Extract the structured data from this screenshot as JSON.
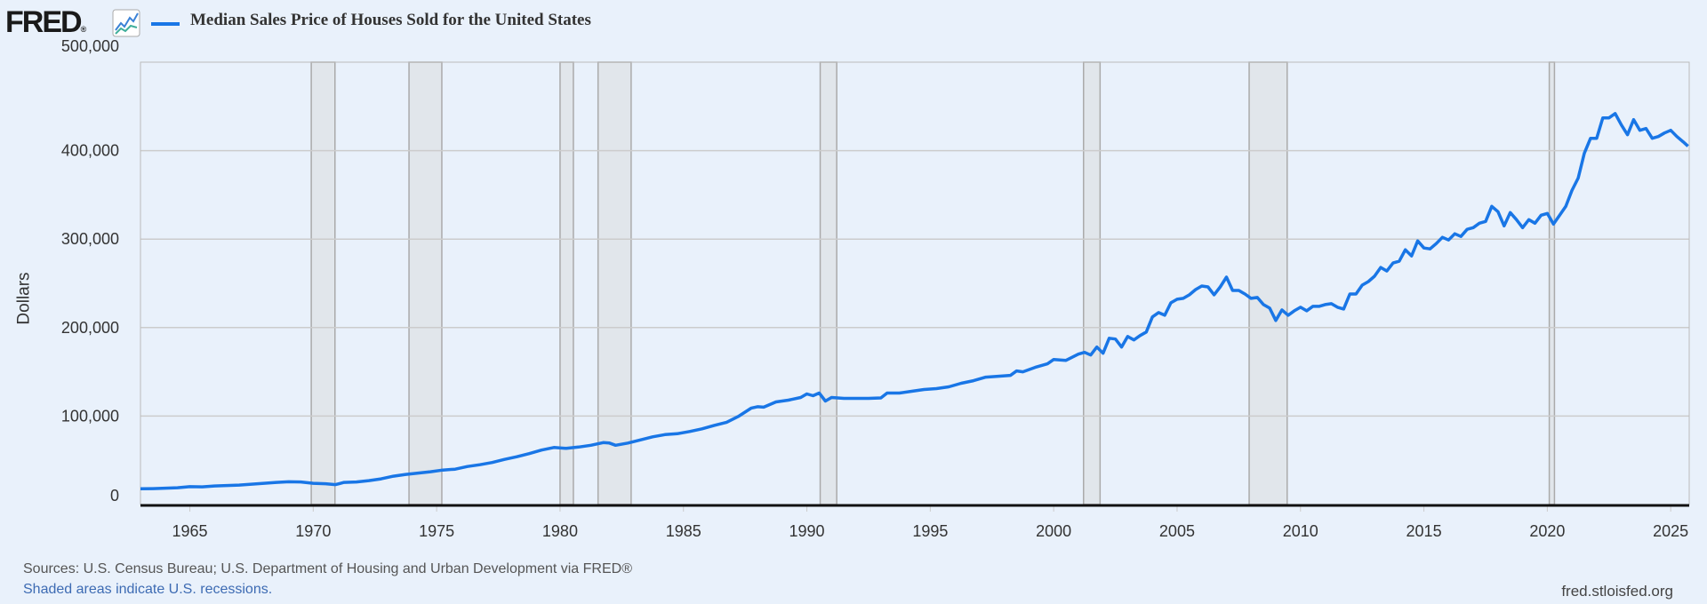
{
  "header": {
    "logo": "FRED",
    "logo_mark": "®",
    "series_title": "Median Sales Price of Houses Sold for the United States"
  },
  "footer": {
    "sources": "Sources: U.S. Census Bureau; U.S. Department of Housing and Urban Development via FRED®",
    "shaded_note": "Shaded areas indicate U.S. recessions.",
    "site": "fred.stloisfed.org"
  },
  "colors": {
    "line": "#1976e6",
    "recession": "#e1e6eb",
    "background": "#e9f1fb"
  },
  "chart_data": {
    "type": "line",
    "title": "Median Sales Price of Houses Sold for the United States",
    "ylabel": "Dollars",
    "xlabel": "",
    "xlim": [
      1963.0,
      2025.75
    ],
    "ylim": [
      0,
      500000
    ],
    "yticks": [
      0,
      100000,
      200000,
      300000,
      400000,
      500000
    ],
    "ytick_labels": [
      "0",
      "100,000",
      "200,000",
      "300,000",
      "400,000",
      "500,000"
    ],
    "xticks": [
      1965,
      1970,
      1975,
      1980,
      1985,
      1990,
      1995,
      2000,
      2005,
      2010,
      2015,
      2020,
      2025
    ],
    "grid": true,
    "recessions": [
      [
        1969.92,
        1970.88
      ],
      [
        1973.88,
        1975.21
      ],
      [
        1980.0,
        1980.54
      ],
      [
        1981.54,
        1982.88
      ],
      [
        1990.54,
        1991.21
      ],
      [
        2001.21,
        2001.88
      ],
      [
        2007.92,
        2009.46
      ],
      [
        2020.08,
        2020.29
      ]
    ],
    "series": [
      {
        "name": "Median Sales Price of Houses Sold for the United States",
        "units": "thousand dollars",
        "x": [
          1963.0,
          1963.5,
          1964.0,
          1964.5,
          1965.0,
          1965.5,
          1966.0,
          1966.5,
          1967.0,
          1967.5,
          1968.0,
          1968.5,
          1969.0,
          1969.5,
          1970.0,
          1970.5,
          1970.9,
          1971.25,
          1971.75,
          1972.25,
          1972.75,
          1973.25,
          1973.75,
          1974.25,
          1974.75,
          1975.25,
          1975.75,
          1976.25,
          1976.75,
          1977.25,
          1977.75,
          1978.25,
          1978.75,
          1979.25,
          1979.75,
          1980.25,
          1980.75,
          1981.25,
          1981.75,
          1982.0,
          1982.25,
          1982.75,
          1983.25,
          1983.75,
          1984.25,
          1984.75,
          1985.25,
          1985.75,
          1986.25,
          1986.75,
          1987.25,
          1987.75,
          1988.0,
          1988.25,
          1988.75,
          1989.25,
          1989.75,
          1990.0,
          1990.25,
          1990.5,
          1990.75,
          1991.0,
          1991.5,
          1992.0,
          1992.5,
          1993.0,
          1993.25,
          1993.75,
          1994.25,
          1994.75,
          1995.25,
          1995.75,
          1996.25,
          1996.75,
          1997.25,
          1997.75,
          1998.25,
          1998.5,
          1998.75,
          1999.25,
          1999.75,
          2000.0,
          2000.5,
          2001.0,
          2001.25,
          2001.5,
          2001.75,
          2002.0,
          2002.25,
          2002.5,
          2002.75,
          2003.0,
          2003.25,
          2003.5,
          2003.75,
          2004.0,
          2004.25,
          2004.5,
          2004.75,
          2005.0,
          2005.25,
          2005.5,
          2005.75,
          2006.0,
          2006.25,
          2006.5,
          2006.75,
          2007.0,
          2007.25,
          2007.5,
          2007.75,
          2008.0,
          2008.25,
          2008.5,
          2008.75,
          2009.0,
          2009.25,
          2009.5,
          2009.75,
          2010.0,
          2010.25,
          2010.5,
          2010.75,
          2011.0,
          2011.25,
          2011.5,
          2011.75,
          2012.0,
          2012.25,
          2012.5,
          2012.75,
          2013.0,
          2013.25,
          2013.5,
          2013.75,
          2014.0,
          2014.25,
          2014.5,
          2014.75,
          2015.0,
          2015.25,
          2015.5,
          2015.75,
          2016.0,
          2016.25,
          2016.5,
          2016.75,
          2017.0,
          2017.25,
          2017.5,
          2017.75,
          2018.0,
          2018.25,
          2018.5,
          2018.75,
          2019.0,
          2019.25,
          2019.5,
          2019.75,
          2020.0,
          2020.25,
          2020.5,
          2020.75,
          2021.0,
          2021.25,
          2021.5,
          2021.75,
          2022.0,
          2022.25,
          2022.5,
          2022.75,
          2023.0,
          2023.25,
          2023.5,
          2023.75,
          2024.0,
          2024.25,
          2024.5,
          2024.75,
          2025.0,
          2025.25,
          2025.5,
          2025.7
        ],
        "y": [
          17.8,
          18.0,
          18.5,
          19.0,
          20.2,
          20.0,
          21.0,
          21.5,
          22.0,
          23.0,
          24.0,
          25.0,
          25.7,
          25.5,
          24.0,
          23.5,
          22.5,
          25.0,
          25.5,
          27.0,
          29.0,
          32.0,
          34.0,
          35.5,
          37.0,
          39.0,
          40.0,
          43.0,
          45.0,
          47.5,
          51.0,
          54.0,
          57.5,
          61.5,
          64.5,
          63.5,
          65.0,
          67.0,
          70.0,
          69.5,
          67.0,
          69.5,
          73.0,
          76.5,
          79.0,
          80.0,
          82.5,
          85.5,
          89.5,
          93.0,
          100,
          109,
          110.5,
          110,
          116,
          118,
          121,
          125,
          123,
          126,
          117,
          121,
          120,
          120,
          120,
          120.5,
          126,
          126,
          128,
          130,
          131,
          133,
          137,
          140,
          144,
          145,
          146,
          151,
          150,
          155,
          159,
          164,
          163,
          170,
          172,
          169,
          178,
          171,
          188,
          187,
          178,
          190,
          186,
          191,
          195,
          212,
          217,
          214,
          228,
          232,
          233,
          237,
          243,
          247,
          246,
          237,
          246,
          257,
          242,
          242,
          238,
          233,
          234,
          226,
          222,
          208,
          220,
          214,
          219,
          223,
          219,
          224,
          224,
          226,
          227,
          223,
          221,
          238,
          238,
          248,
          252,
          258,
          268,
          264,
          273,
          275,
          288,
          281,
          298,
          290,
          289,
          295,
          302,
          299,
          306,
          303,
          311,
          313,
          318,
          320,
          337,
          331,
          315,
          330,
          322,
          313,
          322,
          318,
          327,
          329,
          317,
          327,
          337,
          355,
          369,
          397,
          414,
          414,
          437,
          437,
          442,
          429,
          418,
          435,
          423,
          425,
          414,
          416,
          420,
          423,
          416,
          410,
          405
        ]
      }
    ]
  }
}
